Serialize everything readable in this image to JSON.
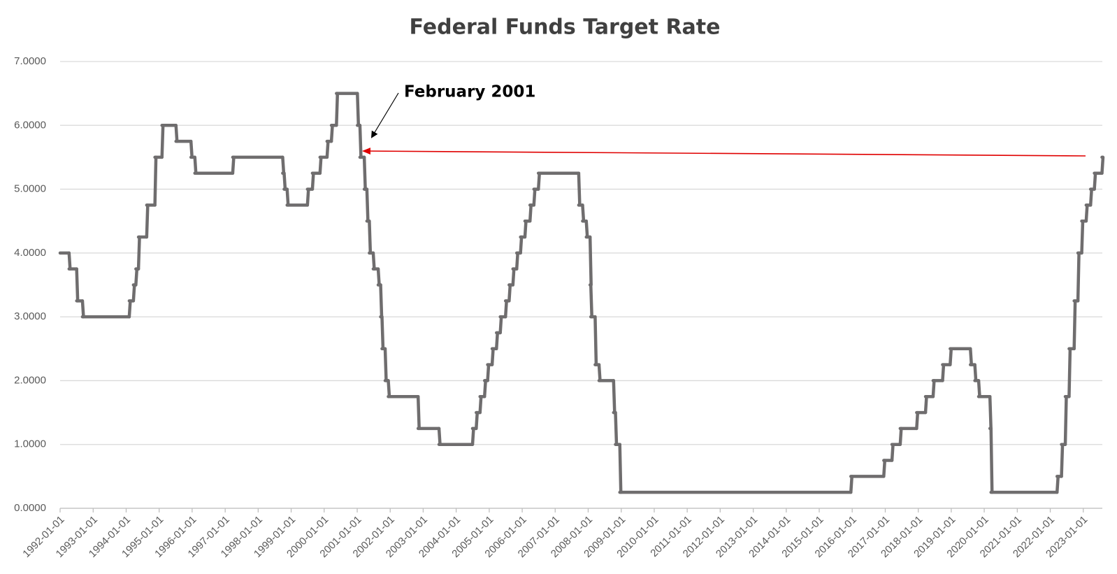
{
  "chart_data": {
    "type": "line",
    "title": "Federal Funds Target Rate",
    "annotation": "February 2001",
    "x": [
      "1992-01-01",
      "1992-04-09",
      "1992-07-02",
      "1992-09-04",
      "1994-02-04",
      "1994-03-22",
      "1994-04-18",
      "1994-05-17",
      "1994-08-16",
      "1994-11-15",
      "1995-02-01",
      "1995-07-06",
      "1995-12-19",
      "1996-01-31",
      "1997-03-25",
      "1998-09-29",
      "1998-10-15",
      "1998-11-17",
      "1999-06-30",
      "1999-08-24",
      "1999-11-16",
      "2000-02-02",
      "2000-03-21",
      "2000-05-16",
      "2001-01-03",
      "2001-01-31",
      "2001-03-20",
      "2001-04-18",
      "2001-05-15",
      "2001-06-27",
      "2001-08-21",
      "2001-09-17",
      "2001-10-02",
      "2001-11-06",
      "2001-12-11",
      "2002-11-06",
      "2003-06-25",
      "2004-06-30",
      "2004-08-10",
      "2004-09-21",
      "2004-11-10",
      "2004-12-14",
      "2005-02-02",
      "2005-03-22",
      "2005-05-03",
      "2005-06-30",
      "2005-08-09",
      "2005-09-20",
      "2005-11-01",
      "2005-12-13",
      "2006-01-31",
      "2006-03-28",
      "2006-05-10",
      "2006-06-29",
      "2007-09-18",
      "2007-10-31",
      "2007-12-11",
      "2008-01-22",
      "2008-01-30",
      "2008-03-18",
      "2008-04-30",
      "2008-10-08",
      "2008-10-29",
      "2008-12-16",
      "2015-12-17",
      "2016-12-15",
      "2017-03-16",
      "2017-06-15",
      "2017-12-14",
      "2018-03-22",
      "2018-06-14",
      "2018-09-27",
      "2018-12-20",
      "2019-08-01",
      "2019-09-19",
      "2019-10-31",
      "2020-03-04",
      "2020-03-16",
      "2022-03-17",
      "2022-05-05",
      "2022-06-16",
      "2022-07-28",
      "2022-09-22",
      "2022-11-03",
      "2022-12-15",
      "2023-02-02",
      "2023-03-23",
      "2023-05-04",
      "2023-07-27"
    ],
    "series": [
      {
        "name": "Federal Funds Target Rate",
        "color": "#6f6d6e",
        "values": [
          4.0,
          3.75,
          3.25,
          3.0,
          3.25,
          3.5,
          3.75,
          4.25,
          4.75,
          5.5,
          6.0,
          5.75,
          5.5,
          5.25,
          5.5,
          5.25,
          5.0,
          4.75,
          5.0,
          5.25,
          5.5,
          5.75,
          6.0,
          6.5,
          6.0,
          5.5,
          5.0,
          4.5,
          4.0,
          3.75,
          3.5,
          3.0,
          2.5,
          2.0,
          1.75,
          1.25,
          1.0,
          1.25,
          1.5,
          1.75,
          2.0,
          2.25,
          2.5,
          2.75,
          3.0,
          3.25,
          3.5,
          3.75,
          4.0,
          4.25,
          4.5,
          4.75,
          5.0,
          5.25,
          4.75,
          4.5,
          4.25,
          3.5,
          3.0,
          2.25,
          2.0,
          1.5,
          1.0,
          0.25,
          0.5,
          0.75,
          1.0,
          1.25,
          1.5,
          1.75,
          2.0,
          2.25,
          2.5,
          2.25,
          2.0,
          1.75,
          1.25,
          0.25,
          0.5,
          1.0,
          1.75,
          2.5,
          3.25,
          4.0,
          4.5,
          4.75,
          5.0,
          5.25,
          5.5
        ]
      }
    ],
    "xlim": [
      "1992-01-01",
      "2023-07-31"
    ],
    "xticks": [
      "1992-01-01",
      "1993-01-01",
      "1994-01-01",
      "1995-01-01",
      "1996-01-01",
      "1997-01-01",
      "1998-01-01",
      "1999-01-01",
      "2000-01-01",
      "2001-01-01",
      "2002-01-01",
      "2003-01-01",
      "2004-01-01",
      "2005-01-01",
      "2006-01-01",
      "2007-01-01",
      "2008-01-01",
      "2009-01-01",
      "2010-01-01",
      "2011-01-01",
      "2012-01-01",
      "2013-01-01",
      "2014-01-01",
      "2015-01-01",
      "2016-01-01",
      "2017-01-01",
      "2018-01-01",
      "2019-01-01",
      "2020-01-01",
      "2021-01-01",
      "2022-01-01",
      "2023-01-01"
    ],
    "ylim": [
      0,
      7
    ],
    "yticks": [
      {
        "value": 0,
        "label": "0.0000"
      },
      {
        "value": 1,
        "label": "1.0000"
      },
      {
        "value": 2,
        "label": "2.0000"
      },
      {
        "value": 3,
        "label": "3.0000"
      },
      {
        "value": 4,
        "label": "4.0000"
      },
      {
        "value": 5,
        "label": "5.0000"
      },
      {
        "value": 6,
        "label": "6.0000"
      },
      {
        "value": 7,
        "label": "7.0000"
      }
    ],
    "grid": true
  }
}
